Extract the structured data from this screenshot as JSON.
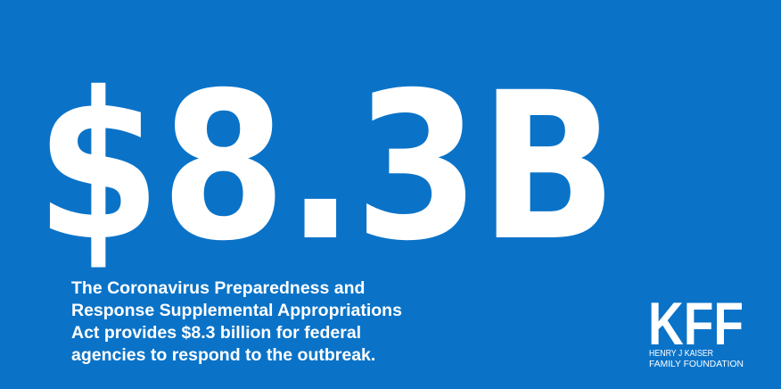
{
  "headline": "$8.3B",
  "body": [
    "The Coronavirus Preparedness and",
    "Response Supplemental Appropriations",
    "Act provides $8.3 billion for federal",
    "agencies to respond to the outbreak."
  ],
  "logo": {
    "mark": "KFF",
    "lines": [
      "HENRY J KAISER",
      "FAMILY FOUNDATION"
    ]
  }
}
